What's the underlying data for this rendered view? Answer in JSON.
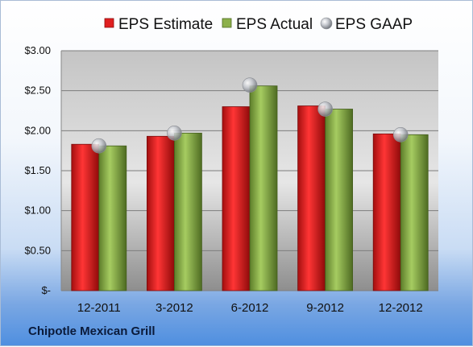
{
  "company": "Chipotle Mexican Grill",
  "chart_data": {
    "type": "bar",
    "categories": [
      "12-2011",
      "3-2012",
      "6-2012",
      "9-2012",
      "12-2012"
    ],
    "series": [
      {
        "name": "EPS Estimate",
        "type": "bar",
        "color": "#e02020",
        "values": [
          1.83,
          1.93,
          2.3,
          2.31,
          1.96
        ]
      },
      {
        "name": "EPS Actual",
        "type": "bar",
        "color": "#8cb04a",
        "values": [
          1.81,
          1.97,
          2.56,
          2.27,
          1.95
        ]
      },
      {
        "name": "EPS GAAP",
        "type": "scatter",
        "color": "#b8bcc4",
        "values": [
          1.81,
          1.97,
          2.57,
          2.27,
          1.95
        ]
      }
    ],
    "ylim": [
      0,
      3.0
    ],
    "yticks": [
      0,
      0.5,
      1.0,
      1.5,
      2.0,
      2.5,
      3.0
    ],
    "ytick_labels": [
      "$-",
      "$0.50",
      "$1.00",
      "$1.50",
      "$2.00",
      "$2.50",
      "$3.00"
    ],
    "grid": true,
    "legend_position": "top"
  }
}
